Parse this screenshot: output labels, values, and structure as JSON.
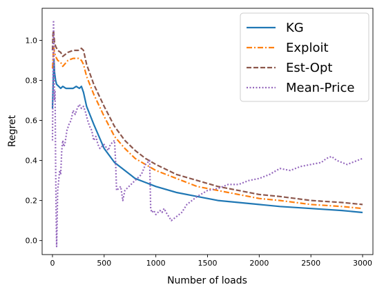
{
  "chart_data": {
    "type": "line",
    "title": "",
    "xlabel": "Number of loads",
    "ylabel": "Regret",
    "xlim": [
      -100,
      3100
    ],
    "ylim": [
      -0.07,
      1.16
    ],
    "xticks": [
      0,
      500,
      1000,
      1500,
      2000,
      2500,
      3000
    ],
    "yticks": [
      0.0,
      0.2,
      0.4,
      0.6,
      0.8,
      1.0
    ],
    "xtick_labels": [
      "0",
      "500",
      "1000",
      "1500",
      "2000",
      "2500",
      "3000"
    ],
    "ytick_labels": [
      "0.0",
      "0.2",
      "0.4",
      "0.6",
      "0.8",
      "1.0"
    ],
    "grid": false,
    "legend_position": "top-right",
    "series": [
      {
        "name": "KG",
        "color": "#1f77b4",
        "style": "solid",
        "x": [
          0,
          5,
          10,
          15,
          20,
          30,
          40,
          60,
          80,
          100,
          130,
          160,
          200,
          230,
          260,
          280,
          300,
          330,
          400,
          500,
          600,
          700,
          800,
          900,
          1000,
          1200,
          1400,
          1600,
          1800,
          2000,
          2200,
          2500,
          2800,
          3000
        ],
        "y": [
          0.66,
          0.75,
          0.84,
          0.9,
          0.84,
          0.8,
          0.78,
          0.77,
          0.76,
          0.77,
          0.76,
          0.76,
          0.76,
          0.77,
          0.76,
          0.77,
          0.74,
          0.67,
          0.58,
          0.46,
          0.39,
          0.35,
          0.31,
          0.29,
          0.27,
          0.24,
          0.22,
          0.2,
          0.19,
          0.18,
          0.17,
          0.16,
          0.15,
          0.14
        ]
      },
      {
        "name": "Exploit",
        "color": "#ff7f0e",
        "style": "dashdot",
        "x": [
          0,
          5,
          10,
          20,
          30,
          50,
          80,
          100,
          150,
          200,
          250,
          280,
          300,
          330,
          400,
          500,
          600,
          700,
          800,
          900,
          1000,
          1200,
          1400,
          1600,
          1800,
          2000,
          2200,
          2500,
          2800,
          3000
        ],
        "y": [
          0.86,
          0.9,
          0.97,
          0.94,
          0.92,
          0.9,
          0.89,
          0.87,
          0.9,
          0.91,
          0.91,
          0.9,
          0.88,
          0.82,
          0.73,
          0.62,
          0.52,
          0.46,
          0.41,
          0.38,
          0.35,
          0.31,
          0.27,
          0.25,
          0.23,
          0.21,
          0.2,
          0.18,
          0.17,
          0.16
        ]
      },
      {
        "name": "Est-Opt",
        "color": "#8c564b",
        "style": "dashed",
        "x": [
          0,
          5,
          10,
          20,
          30,
          50,
          80,
          100,
          150,
          200,
          250,
          280,
          300,
          330,
          400,
          500,
          600,
          700,
          800,
          900,
          1000,
          1200,
          1400,
          1600,
          1800,
          2000,
          2200,
          2500,
          2800,
          3000
        ],
        "y": [
          0.95,
          1.03,
          1.05,
          0.99,
          0.97,
          0.95,
          0.94,
          0.92,
          0.94,
          0.95,
          0.95,
          0.96,
          0.95,
          0.88,
          0.78,
          0.67,
          0.57,
          0.5,
          0.45,
          0.41,
          0.38,
          0.33,
          0.3,
          0.27,
          0.25,
          0.23,
          0.22,
          0.2,
          0.19,
          0.18
        ]
      },
      {
        "name": "Mean-Price",
        "color": "#9467bd",
        "style": "dotted",
        "x": [
          0,
          5,
          10,
          15,
          20,
          25,
          30,
          35,
          40,
          45,
          50,
          60,
          70,
          80,
          90,
          100,
          110,
          120,
          140,
          160,
          180,
          200,
          220,
          240,
          260,
          280,
          300,
          320,
          340,
          360,
          380,
          400,
          420,
          440,
          460,
          500,
          540,
          560,
          580,
          600,
          610,
          620,
          640,
          660,
          680,
          700,
          740,
          800,
          860,
          900,
          940,
          950,
          960,
          980,
          1000,
          1020,
          1040,
          1060,
          1080,
          1100,
          1150,
          1200,
          1250,
          1300,
          1350,
          1400,
          1500,
          1600,
          1700,
          1800,
          1900,
          2000,
          2100,
          2200,
          2300,
          2400,
          2500,
          2600,
          2650,
          2700,
          2750,
          2800,
          2850,
          2900,
          2950,
          3000
        ],
        "y": [
          0.5,
          0.8,
          1.1,
          0.95,
          0.7,
          0.75,
          0.4,
          0.15,
          -0.03,
          0.1,
          0.25,
          0.3,
          0.35,
          0.33,
          0.45,
          0.5,
          0.47,
          0.48,
          0.55,
          0.58,
          0.6,
          0.65,
          0.63,
          0.66,
          0.68,
          0.66,
          0.67,
          0.64,
          0.6,
          0.57,
          0.55,
          0.5,
          0.52,
          0.48,
          0.46,
          0.48,
          0.45,
          0.48,
          0.49,
          0.5,
          0.4,
          0.25,
          0.26,
          0.27,
          0.2,
          0.25,
          0.27,
          0.3,
          0.33,
          0.38,
          0.4,
          0.16,
          0.14,
          0.15,
          0.13,
          0.14,
          0.15,
          0.14,
          0.16,
          0.14,
          0.1,
          0.12,
          0.14,
          0.18,
          0.2,
          0.22,
          0.25,
          0.26,
          0.28,
          0.28,
          0.3,
          0.31,
          0.33,
          0.36,
          0.35,
          0.37,
          0.38,
          0.39,
          0.41,
          0.42,
          0.4,
          0.39,
          0.38,
          0.39,
          0.4,
          0.41
        ]
      }
    ]
  }
}
